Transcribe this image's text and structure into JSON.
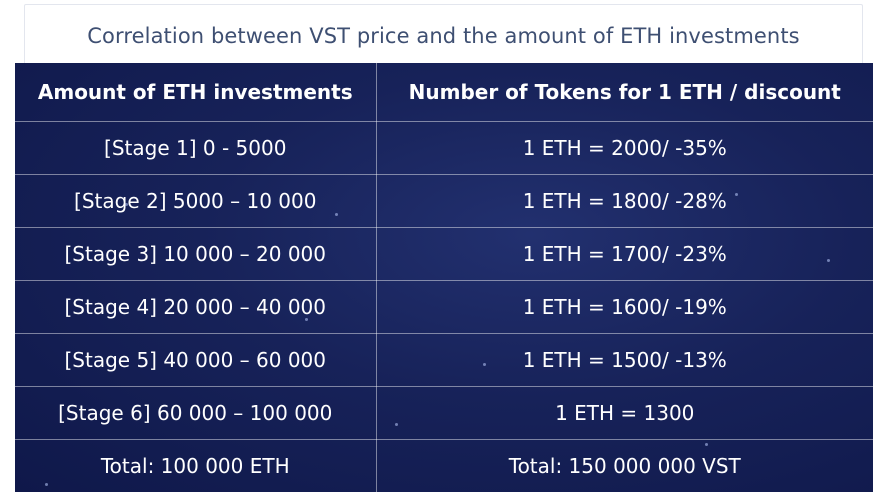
{
  "title": "Correlation between VST price and the amount of ETH investments",
  "table": {
    "headers": [
      "Amount of ETH investments",
      "Number of Tokens for 1 ETH / discount"
    ],
    "rows": [
      [
        "[Stage 1] 0 - 5000",
        "1 ETH = 2000/ -35%"
      ],
      [
        "[Stage 2] 5000 – 10 000",
        "1 ETH = 1800/ -28%"
      ],
      [
        "[Stage 3] 10 000 – 20 000",
        "1 ETH = 1700/ -23%"
      ],
      [
        "[Stage 4] 20 000 – 40 000",
        "1 ETH = 1600/ -19%"
      ],
      [
        "[Stage 5] 40 000 – 60 000",
        "1 ETH = 1500/ -13%"
      ],
      [
        "[Stage 6] 60 000 – 100 000",
        "1 ETH = 1300"
      ],
      [
        "Total: 100 000 ETH",
        "Total: 150 000 000 VST"
      ]
    ]
  },
  "colors": {
    "title_text": "#3e4f72",
    "table_bg": "#172259",
    "cell_text": "#ffffff"
  }
}
